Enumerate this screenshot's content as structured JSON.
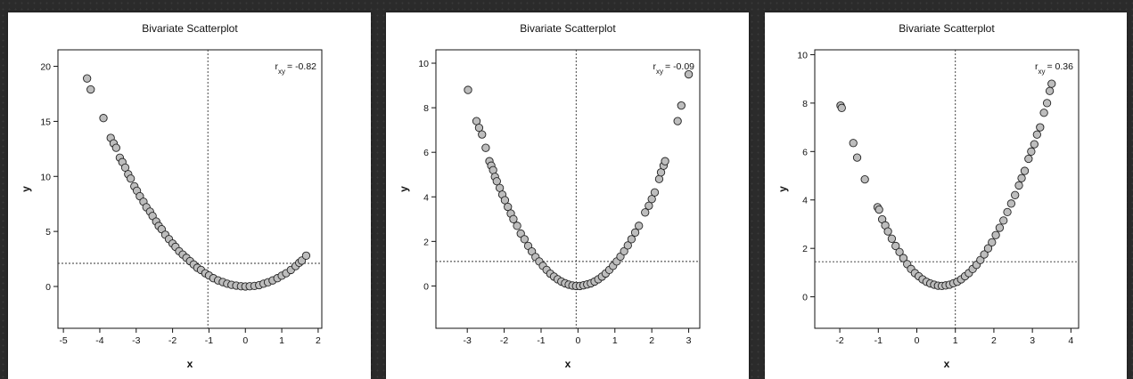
{
  "chart_data": [
    {
      "type": "scatter",
      "title": "Bivariate Scatterplot",
      "xlabel": "x",
      "ylabel": "y",
      "annotation": {
        "prefix": "r",
        "sub": "xy",
        "value": "= -0.82"
      },
      "xlim": [
        -5.15,
        2.1
      ],
      "ylim": [
        -3.8,
        21.5
      ],
      "xticks": [
        -5,
        -4,
        -3,
        -2,
        -1,
        0,
        1,
        2
      ],
      "yticks": [
        0,
        5,
        10,
        15,
        20
      ],
      "vline": -1.03,
      "hline": 2.1,
      "points": [
        [
          -4.35,
          18.9
        ],
        [
          -4.25,
          17.9
        ],
        [
          -3.9,
          15.3
        ],
        [
          -3.7,
          13.5
        ],
        [
          -3.62,
          13.0
        ],
        [
          -3.55,
          12.6
        ],
        [
          -3.45,
          11.7
        ],
        [
          -3.38,
          11.3
        ],
        [
          -3.3,
          10.8
        ],
        [
          -3.22,
          10.2
        ],
        [
          -3.15,
          9.8
        ],
        [
          -3.05,
          9.1
        ],
        [
          -2.98,
          8.7
        ],
        [
          -2.9,
          8.2
        ],
        [
          -2.8,
          7.7
        ],
        [
          -2.72,
          7.2
        ],
        [
          -2.62,
          6.8
        ],
        [
          -2.55,
          6.4
        ],
        [
          -2.45,
          5.9
        ],
        [
          -2.38,
          5.5
        ],
        [
          -2.3,
          5.2
        ],
        [
          -2.2,
          4.7
        ],
        [
          -2.1,
          4.3
        ],
        [
          -2.0,
          3.9
        ],
        [
          -1.92,
          3.6
        ],
        [
          -1.82,
          3.2
        ],
        [
          -1.72,
          2.9
        ],
        [
          -1.62,
          2.6
        ],
        [
          -1.52,
          2.3
        ],
        [
          -1.42,
          2.0
        ],
        [
          -1.32,
          1.7
        ],
        [
          -1.22,
          1.5
        ],
        [
          -1.1,
          1.2
        ],
        [
          -1.0,
          1.0
        ],
        [
          -0.88,
          0.75
        ],
        [
          -0.75,
          0.55
        ],
        [
          -0.62,
          0.4
        ],
        [
          -0.5,
          0.25
        ],
        [
          -0.38,
          0.15
        ],
        [
          -0.25,
          0.08
        ],
        [
          -0.12,
          0.02
        ],
        [
          0.0,
          0.0
        ],
        [
          0.12,
          0.02
        ],
        [
          0.25,
          0.05
        ],
        [
          0.38,
          0.12
        ],
        [
          0.5,
          0.25
        ],
        [
          0.62,
          0.38
        ],
        [
          0.75,
          0.55
        ],
        [
          0.88,
          0.75
        ],
        [
          1.0,
          0.98
        ],
        [
          1.12,
          1.2
        ],
        [
          1.25,
          1.5
        ],
        [
          1.38,
          1.85
        ],
        [
          1.48,
          2.15
        ],
        [
          1.55,
          2.35
        ],
        [
          1.67,
          2.8
        ]
      ]
    },
    {
      "type": "scatter",
      "title": "Bivariate Scatterplot",
      "xlabel": "x",
      "ylabel": "y",
      "annotation": {
        "prefix": "r",
        "sub": "xy",
        "value": "= -0.09"
      },
      "xlim": [
        -3.85,
        3.3
      ],
      "ylim": [
        -1.9,
        10.6
      ],
      "xticks": [
        -3,
        -2,
        -1,
        0,
        1,
        2,
        3
      ],
      "yticks": [
        0,
        2,
        4,
        6,
        8,
        10
      ],
      "vline": -0.05,
      "hline": 1.1,
      "points": [
        [
          -2.98,
          8.8
        ],
        [
          -2.75,
          7.4
        ],
        [
          -2.68,
          7.1
        ],
        [
          -2.6,
          6.8
        ],
        [
          -2.5,
          6.2
        ],
        [
          -2.4,
          5.6
        ],
        [
          -2.35,
          5.4
        ],
        [
          -2.3,
          5.2
        ],
        [
          -2.25,
          4.9
        ],
        [
          -2.2,
          4.7
        ],
        [
          -2.12,
          4.4
        ],
        [
          -2.05,
          4.1
        ],
        [
          -1.98,
          3.85
        ],
        [
          -1.9,
          3.55
        ],
        [
          -1.82,
          3.25
        ],
        [
          -1.75,
          3.0
        ],
        [
          -1.65,
          2.7
        ],
        [
          -1.55,
          2.35
        ],
        [
          -1.45,
          2.1
        ],
        [
          -1.35,
          1.8
        ],
        [
          -1.25,
          1.55
        ],
        [
          -1.15,
          1.3
        ],
        [
          -1.05,
          1.1
        ],
        [
          -0.95,
          0.9
        ],
        [
          -0.85,
          0.72
        ],
        [
          -0.75,
          0.55
        ],
        [
          -0.65,
          0.42
        ],
        [
          -0.55,
          0.3
        ],
        [
          -0.45,
          0.2
        ],
        [
          -0.35,
          0.12
        ],
        [
          -0.25,
          0.06
        ],
        [
          -0.15,
          0.02
        ],
        [
          -0.05,
          0.0
        ],
        [
          0.05,
          0.0
        ],
        [
          0.15,
          0.03
        ],
        [
          0.25,
          0.07
        ],
        [
          0.35,
          0.12
        ],
        [
          0.45,
          0.2
        ],
        [
          0.55,
          0.3
        ],
        [
          0.65,
          0.42
        ],
        [
          0.75,
          0.56
        ],
        [
          0.85,
          0.72
        ],
        [
          0.95,
          0.9
        ],
        [
          1.05,
          1.1
        ],
        [
          1.15,
          1.32
        ],
        [
          1.25,
          1.56
        ],
        [
          1.35,
          1.82
        ],
        [
          1.45,
          2.1
        ],
        [
          1.55,
          2.4
        ],
        [
          1.65,
          2.7
        ],
        [
          1.82,
          3.3
        ],
        [
          1.92,
          3.6
        ],
        [
          2.0,
          3.9
        ],
        [
          2.08,
          4.2
        ],
        [
          2.2,
          4.8
        ],
        [
          2.25,
          5.1
        ],
        [
          2.32,
          5.4
        ],
        [
          2.36,
          5.6
        ],
        [
          2.7,
          7.4
        ],
        [
          2.8,
          8.1
        ],
        [
          3.0,
          9.5
        ]
      ]
    },
    {
      "type": "scatter",
      "title": "Bivariate Scatterplot",
      "xlabel": "x",
      "ylabel": "y",
      "annotation": {
        "prefix": "r",
        "sub": "xy",
        "value": "= 0.36"
      },
      "xlim": [
        -2.65,
        4.2
      ],
      "ylim": [
        -1.3,
        10.2
      ],
      "xticks": [
        -2,
        -1,
        0,
        1,
        2,
        3,
        4
      ],
      "yticks": [
        0,
        2,
        4,
        6,
        8,
        10
      ],
      "vline": 1.0,
      "hline": 1.45,
      "points": [
        [
          -1.98,
          7.9
        ],
        [
          -1.95,
          7.8
        ],
        [
          -1.65,
          6.35
        ],
        [
          -1.55,
          5.75
        ],
        [
          -1.35,
          4.85
        ],
        [
          -1.02,
          3.7
        ],
        [
          -0.98,
          3.6
        ],
        [
          -0.9,
          3.2
        ],
        [
          -0.82,
          2.95
        ],
        [
          -0.75,
          2.7
        ],
        [
          -0.65,
          2.4
        ],
        [
          -0.55,
          2.1
        ],
        [
          -0.45,
          1.85
        ],
        [
          -0.35,
          1.6
        ],
        [
          -0.25,
          1.35
        ],
        [
          -0.15,
          1.15
        ],
        [
          -0.05,
          0.98
        ],
        [
          0.05,
          0.85
        ],
        [
          0.15,
          0.72
        ],
        [
          0.25,
          0.62
        ],
        [
          0.35,
          0.55
        ],
        [
          0.45,
          0.5
        ],
        [
          0.55,
          0.46
        ],
        [
          0.65,
          0.45
        ],
        [
          0.75,
          0.47
        ],
        [
          0.85,
          0.5
        ],
        [
          0.95,
          0.56
        ],
        [
          1.05,
          0.62
        ],
        [
          1.15,
          0.72
        ],
        [
          1.25,
          0.85
        ],
        [
          1.35,
          0.98
        ],
        [
          1.45,
          1.15
        ],
        [
          1.55,
          1.32
        ],
        [
          1.65,
          1.52
        ],
        [
          1.75,
          1.75
        ],
        [
          1.85,
          2.0
        ],
        [
          1.95,
          2.25
        ],
        [
          2.05,
          2.55
        ],
        [
          2.15,
          2.85
        ],
        [
          2.25,
          3.15
        ],
        [
          2.35,
          3.5
        ],
        [
          2.45,
          3.85
        ],
        [
          2.55,
          4.2
        ],
        [
          2.65,
          4.6
        ],
        [
          2.72,
          4.9
        ],
        [
          2.8,
          5.2
        ],
        [
          2.9,
          5.7
        ],
        [
          2.97,
          6.0
        ],
        [
          3.05,
          6.3
        ],
        [
          3.12,
          6.7
        ],
        [
          3.2,
          7.0
        ],
        [
          3.3,
          7.6
        ],
        [
          3.38,
          8.0
        ],
        [
          3.45,
          8.5
        ],
        [
          3.5,
          8.8
        ]
      ]
    }
  ]
}
